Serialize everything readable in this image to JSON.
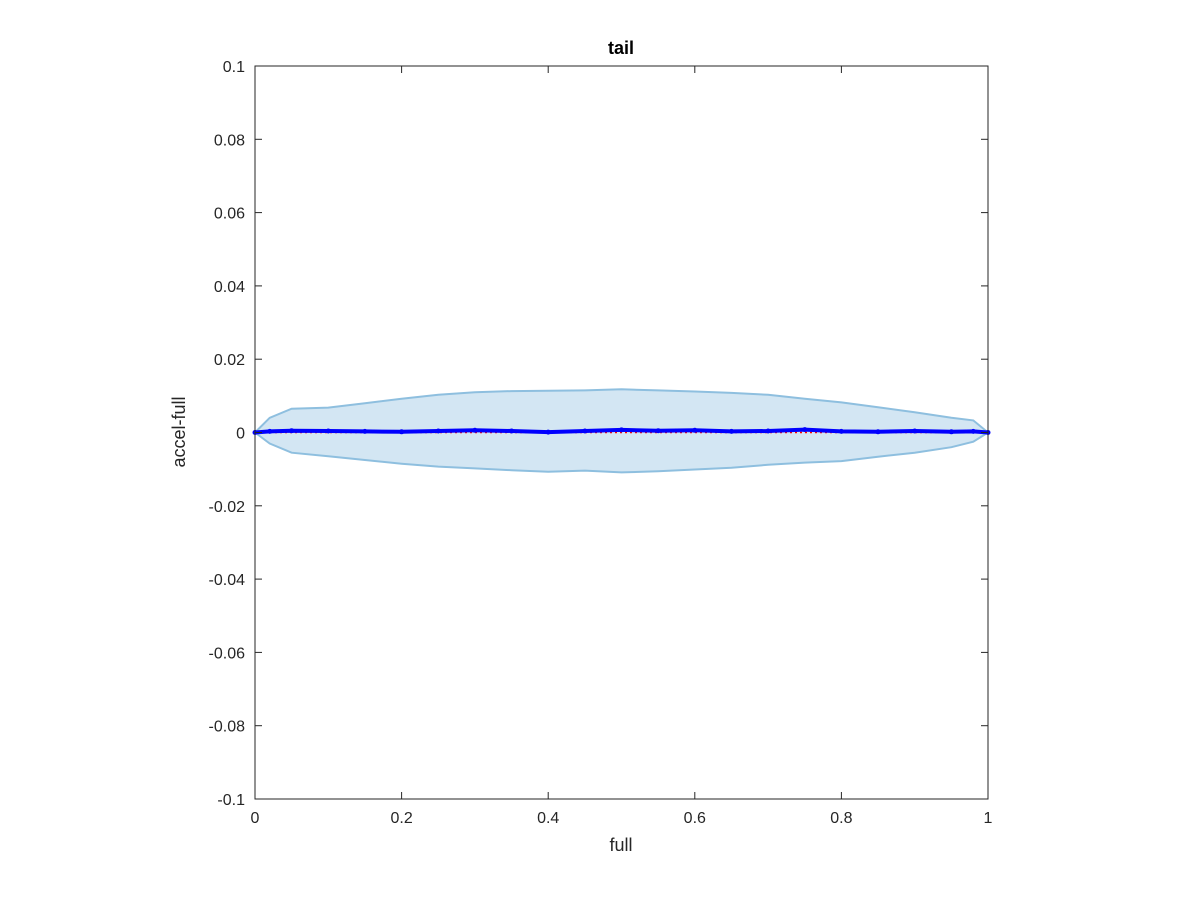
{
  "chart_data": {
    "type": "area",
    "title": "tail",
    "xlabel": "full",
    "ylabel": "accel-full",
    "xlim": [
      0,
      1
    ],
    "ylim": [
      -0.1,
      0.1
    ],
    "xticks": [
      "0",
      "0.2",
      "0.4",
      "0.6",
      "0.8",
      "1"
    ],
    "xtick_values": [
      0,
      0.2,
      0.4,
      0.6,
      0.8,
      1
    ],
    "yticks": [
      "0.1",
      "0.08",
      "0.06",
      "0.04",
      "0.02",
      "0",
      "-0.02",
      "-0.04",
      "-0.06",
      "-0.08",
      "-0.1"
    ],
    "ytick_values": [
      0.1,
      0.08,
      0.06,
      0.04,
      0.02,
      0,
      -0.02,
      -0.04,
      -0.06,
      -0.08,
      -0.1
    ],
    "grid": false,
    "x": [
      0,
      0.02,
      0.05,
      0.1,
      0.15,
      0.2,
      0.25,
      0.3,
      0.35,
      0.4,
      0.45,
      0.5,
      0.55,
      0.6,
      0.65,
      0.7,
      0.75,
      0.8,
      0.85,
      0.9,
      0.95,
      0.98,
      1
    ],
    "series": [
      {
        "values": [
          0,
          0.0003,
          0.0005,
          0.0004,
          0.0003,
          0.0002,
          0.0004,
          0.0006,
          0.0004,
          0.0001,
          0.0004,
          0.0007,
          0.0005,
          0.0006,
          0.0003,
          0.0004,
          0.0008,
          0.0003,
          0.0002,
          0.0004,
          0.0002,
          0.0003,
          0
        ],
        "color": "#0000ff",
        "style": "solid-marker-line"
      },
      {
        "values": [
          0,
          0,
          0,
          0,
          0,
          0,
          0,
          0,
          0,
          0,
          0,
          0,
          0,
          0,
          0,
          0,
          0,
          0,
          0,
          0,
          0,
          0,
          0
        ],
        "color": "#ff0000",
        "style": "dotted"
      }
    ],
    "band": {
      "upper": [
        0,
        0.004,
        0.0065,
        0.0068,
        0.008,
        0.0092,
        0.0103,
        0.011,
        0.0113,
        0.0114,
        0.0115,
        0.0118,
        0.0115,
        0.0112,
        0.0108,
        0.0103,
        0.0092,
        0.0082,
        0.0069,
        0.0055,
        0.004,
        0.0033,
        0
      ],
      "lower": [
        0,
        -0.003,
        -0.0055,
        -0.0065,
        -0.0075,
        -0.0085,
        -0.0093,
        -0.0098,
        -0.0103,
        -0.0107,
        -0.0104,
        -0.0109,
        -0.0106,
        -0.0101,
        -0.0096,
        -0.0088,
        -0.0082,
        -0.0078,
        -0.0066,
        -0.0055,
        -0.004,
        -0.0025,
        0
      ],
      "fill_color": "#d3e6f3",
      "edge_color": "#8ebfdf"
    }
  }
}
